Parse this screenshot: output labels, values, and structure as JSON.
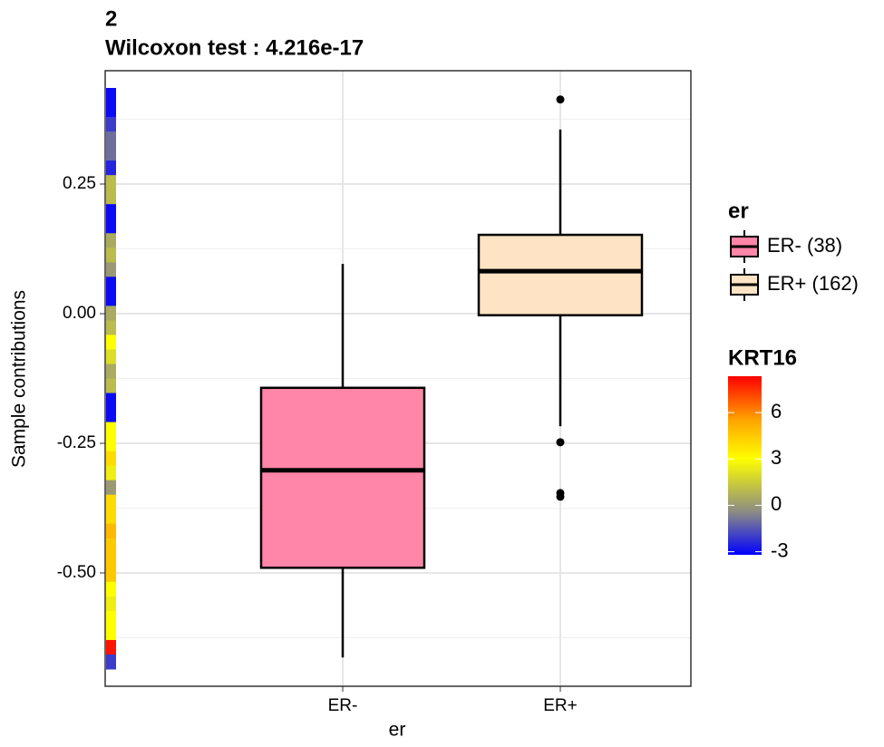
{
  "chart_data": {
    "type": "box",
    "title": "2",
    "subtitle": "Wilcoxon test : 4.216e-17",
    "x_label": "er",
    "y_label": "Sample contributions",
    "categories": [
      "ER-",
      "ER+"
    ],
    "series": [
      {
        "name": "ER- (38)",
        "color": "#ff85a9",
        "whisker_low": -0.663,
        "q1": -0.49,
        "median": -0.302,
        "q3": -0.143,
        "whisker_high": 0.096,
        "outliers": []
      },
      {
        "name": "ER+ (162)",
        "color": "#fee4c4",
        "whisker_low": -0.217,
        "q1": -0.003,
        "median": 0.082,
        "q3": 0.152,
        "whisker_high": 0.355,
        "outliers": [
          0.413,
          -0.248,
          -0.346,
          -0.353
        ]
      }
    ],
    "ylim": [
      -0.7185,
      0.4685
    ],
    "yticks": [
      0.25,
      {
        "value": 0,
        "label": "0.00"
      },
      -0.25,
      {
        "value": -0.5,
        "label": "-0.50"
      }
    ],
    "minor_yticks": [
      0.375,
      0.125,
      -0.125,
      -0.375,
      -0.625
    ],
    "grid": true,
    "legend_title": "er",
    "legend_position": "right",
    "color_legend": {
      "title": "KRT16",
      "lim": [
        -3.2,
        8.35
      ],
      "ticks": [
        -3,
        0,
        3,
        6
      ],
      "colorscale": [
        [
          -3.2,
          "#0000ff"
        ],
        [
          -0.5,
          "#888888"
        ],
        [
          3,
          "#ffff00"
        ],
        [
          5.5,
          "#ffa500"
        ],
        [
          8.35,
          "#ff0000"
        ]
      ]
    },
    "strip_values": [
      -3,
      -3,
      -2,
      -1,
      -1,
      -2.5,
      1,
      1,
      -3,
      -3,
      0.5,
      1,
      0,
      -3,
      -3,
      0.5,
      1,
      3,
      2,
      0.5,
      1,
      -3,
      -3,
      3,
      3,
      4,
      2.5,
      0,
      4,
      4,
      5,
      4.5,
      4.5,
      4.5,
      3,
      2.5,
      3,
      3,
      8,
      -2
    ]
  }
}
